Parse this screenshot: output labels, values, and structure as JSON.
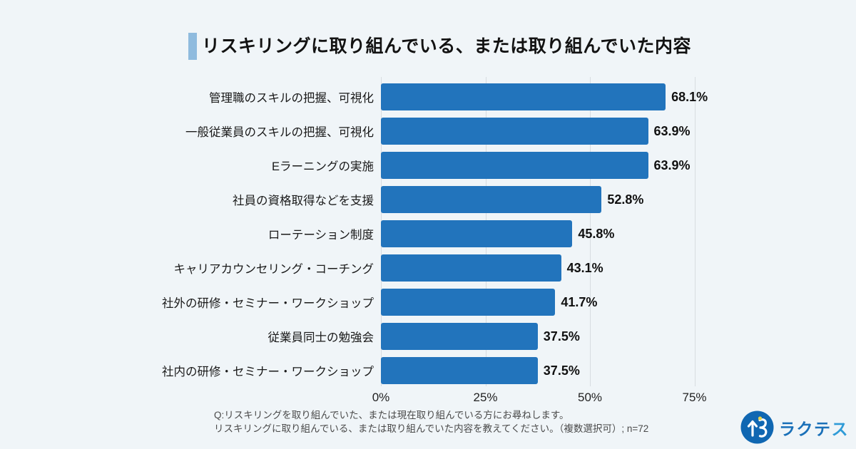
{
  "title": {
    "text": "リスキリングに取り組んでいる、または取り組んでいた内容"
  },
  "chart_data": {
    "type": "bar",
    "orientation": "horizontal",
    "title": "リスキリングに取り組んでいる、または取り組んでいた内容",
    "categories": [
      "管理職のスキルの把握、可視化",
      "一般従業員のスキルの把握、可視化",
      "Eラーニングの実施",
      "社員の資格取得などを支援",
      "ローテーション制度",
      "キャリアカウンセリング・コーチング",
      "社外の研修・セミナー・ワークショップ",
      "従業員同士の勉強会",
      "社内の研修・セミナー・ワークショップ"
    ],
    "values": [
      68.1,
      63.9,
      63.9,
      52.8,
      45.8,
      43.1,
      41.7,
      37.5,
      37.5
    ],
    "value_labels": [
      "68.1%",
      "63.9%",
      "63.9%",
      "52.8%",
      "45.8%",
      "43.1%",
      "41.7%",
      "37.5%",
      "37.5%"
    ],
    "unit": "%",
    "xlim": [
      0,
      100
    ],
    "x_ticks": [
      "0%",
      "25%",
      "50%",
      "75%"
    ],
    "grid": "vertical-gridlines-at-ticks",
    "legend": "none",
    "bar_color": "#2274BC",
    "n": 72
  },
  "footer": {
    "line1": "Q:リスキリングを取り組んでいた、または現在取り組んでいる方にお尋ねします。",
    "line2": "リスキリングに取り組んでいる、または取り組んでいた内容を教えてください。（複数選択可）; n=72"
  },
  "logo": {
    "brand_text_main": "ラクテ",
    "brand_text_last": "ス",
    "mark": "ractes-person-r-icon"
  },
  "colors": {
    "background": "#F0F5F8",
    "bar": "#2274BC",
    "title_accent": "#8FBBDE",
    "gridline": "#D7DCE0",
    "text_primary": "#121212",
    "footer_text": "#4A4A4A",
    "logo_circle": "#1067B2",
    "logo_text": "#1A70B8",
    "logo_text_last": "#2F9BD7",
    "logo_dot": "#E8D44D"
  }
}
